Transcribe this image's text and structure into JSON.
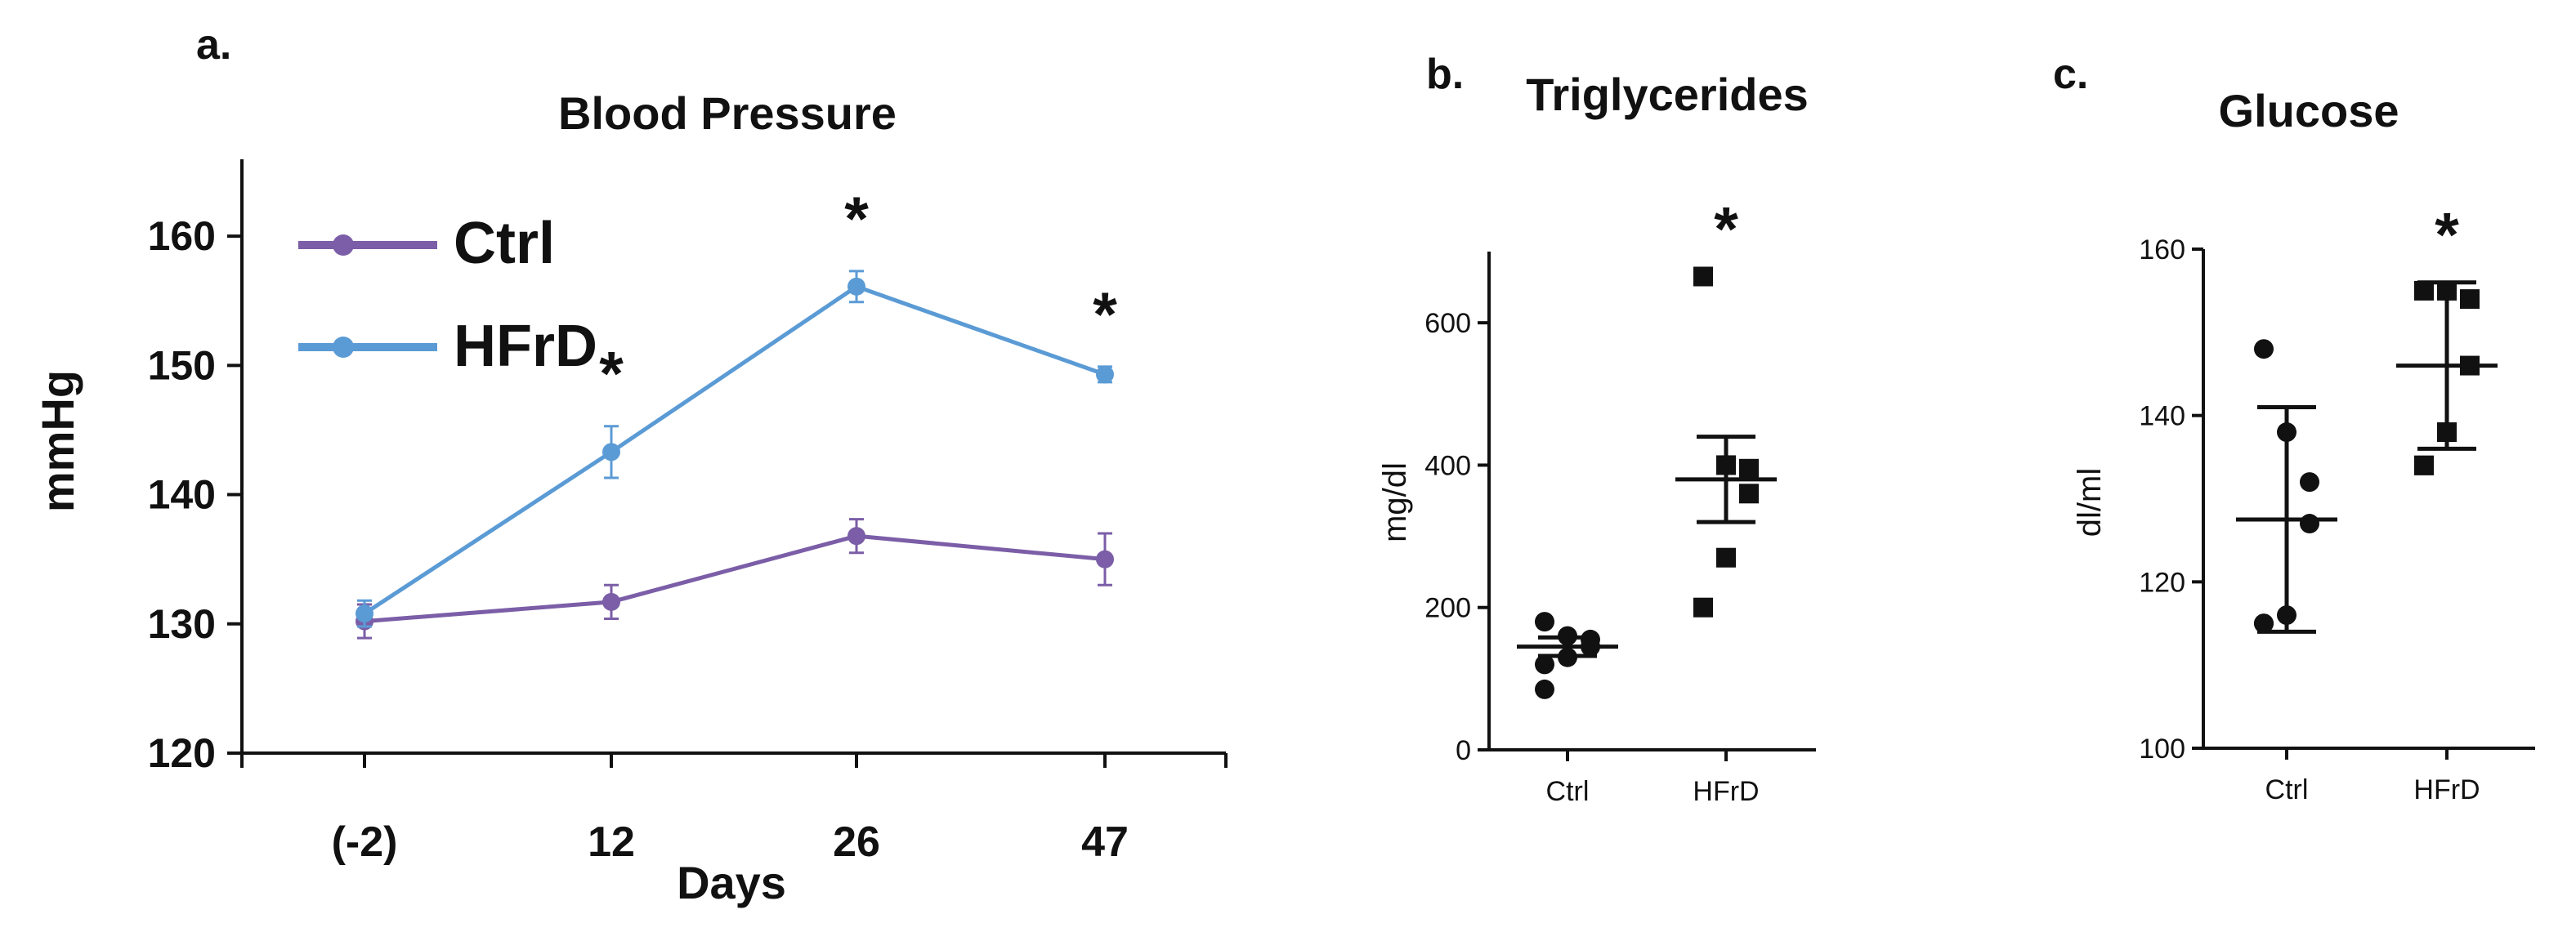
{
  "chart_data": [
    {
      "panel_label": "a.",
      "type": "line",
      "title": "Blood Pressure",
      "xlabel": "Days",
      "ylabel": "mmHg",
      "categories": [
        "(-2)",
        "12",
        "26",
        "47"
      ],
      "ylim": [
        120,
        165
      ],
      "yticks": [
        "120",
        "130",
        "140",
        "150",
        "160"
      ],
      "series": [
        {
          "name": "Ctrl",
          "color": "#7b5ea7",
          "values": [
            130.2,
            131.7,
            136.8,
            135.0
          ],
          "errors": [
            1.3,
            1.3,
            1.3,
            2.0
          ]
        },
        {
          "name": "HFrD",
          "color": "#5b9bd5",
          "values": [
            130.8,
            143.3,
            156.1,
            149.3
          ],
          "errors": [
            1.0,
            2.0,
            1.2,
            0.6
          ]
        }
      ],
      "annotations": [
        {
          "category": "12",
          "text": "*"
        },
        {
          "category": "26",
          "text": "*"
        },
        {
          "category": "47",
          "text": "*"
        }
      ]
    },
    {
      "panel_label": "b.",
      "type": "scatter",
      "title": "Triglycerides",
      "ylabel": "mg/dl",
      "categories": [
        "Ctrl",
        "HFrD"
      ],
      "ylim": [
        0,
        700
      ],
      "yticks": [
        "0",
        "200",
        "400",
        "600"
      ],
      "groups": [
        {
          "name": "Ctrl",
          "marker": "circle",
          "points": [
            180,
            160,
            155,
            145,
            130,
            120,
            85
          ],
          "mean": 145,
          "sem_lower": 132,
          "sem_upper": 158
        },
        {
          "name": "HFrD",
          "marker": "square",
          "points": [
            665,
            400,
            395,
            360,
            270,
            200
          ],
          "mean": 380,
          "sem_lower": 320,
          "sem_upper": 440
        }
      ],
      "annotations": [
        {
          "category": "HFrD",
          "text": "*"
        }
      ]
    },
    {
      "panel_label": "c.",
      "type": "scatter",
      "title": "Glucose",
      "ylabel": "dl/ml",
      "categories": [
        "Ctrl",
        "HFrD"
      ],
      "ylim": [
        100,
        160
      ],
      "yticks": [
        "100",
        "120",
        "140",
        "160"
      ],
      "groups": [
        {
          "name": "Ctrl",
          "marker": "circle",
          "points": [
            148,
            138,
            132,
            127,
            116,
            115,
            115
          ],
          "mean": 127.5,
          "sem_lower": 114,
          "sem_upper": 141
        },
        {
          "name": "HFrD",
          "marker": "square",
          "points": [
            155,
            155,
            154,
            146,
            138,
            134,
            134
          ],
          "mean": 146,
          "sem_lower": 136,
          "sem_upper": 156
        }
      ],
      "annotations": [
        {
          "category": "HFrD",
          "text": "*"
        }
      ]
    }
  ]
}
